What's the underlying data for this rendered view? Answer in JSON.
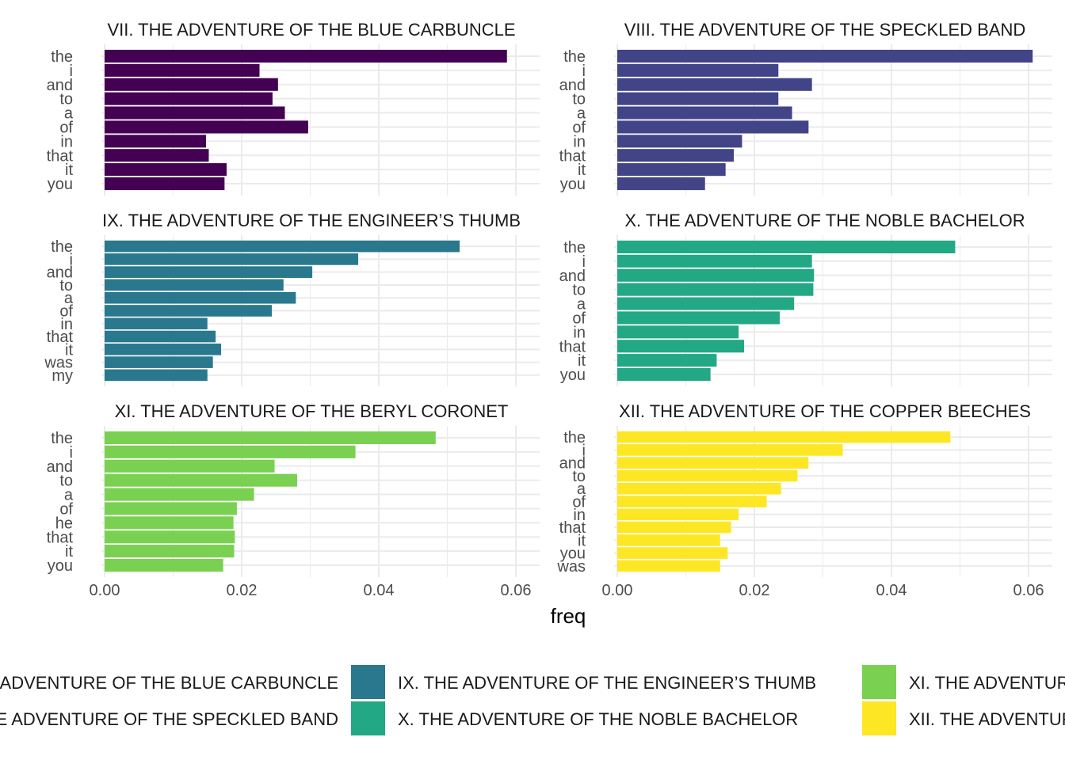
{
  "chart_data": {
    "type": "bar",
    "orientation": "horizontal",
    "xlabel": "freq",
    "xlim": [
      0,
      0.06
    ],
    "x_ticks": [
      "0.00",
      "0.02",
      "0.04",
      "0.06"
    ],
    "grid": true,
    "legend_position": "bottom",
    "panels": [
      {
        "title": "VII. THE ADVENTURE OF THE BLUE CARBUNCLE",
        "color": "#440154",
        "categories": [
          "the",
          "i",
          "and",
          "to",
          "a",
          "of",
          "in",
          "that",
          "it",
          "you"
        ],
        "values": [
          0.0587,
          0.0226,
          0.0253,
          0.0245,
          0.0263,
          0.0297,
          0.0148,
          0.0152,
          0.0178,
          0.0175
        ]
      },
      {
        "title": "VIII. THE ADVENTURE OF THE SPECKLED BAND",
        "color": "#414487",
        "categories": [
          "the",
          "i",
          "and",
          "to",
          "a",
          "of",
          "in",
          "that",
          "it",
          "you"
        ],
        "values": [
          0.0606,
          0.0235,
          0.0284,
          0.0235,
          0.0255,
          0.0279,
          0.0182,
          0.017,
          0.0158,
          0.0128
        ]
      },
      {
        "title": "IX. THE ADVENTURE OF THE ENGINEER’S THUMB",
        "color": "#2A788E",
        "categories": [
          "the",
          "i",
          "and",
          "to",
          "a",
          "of",
          "in",
          "that",
          "it",
          "was",
          "my"
        ],
        "values": [
          0.0518,
          0.037,
          0.0303,
          0.0261,
          0.0279,
          0.0244,
          0.015,
          0.0162,
          0.017,
          0.0158,
          0.015
        ]
      },
      {
        "title": "X. THE ADVENTURE OF THE NOBLE BACHELOR",
        "color": "#22A884",
        "categories": [
          "the",
          "i",
          "and",
          "to",
          "a",
          "of",
          "in",
          "that",
          "it",
          "you"
        ],
        "values": [
          0.0493,
          0.0284,
          0.0287,
          0.0286,
          0.0258,
          0.0237,
          0.0177,
          0.0185,
          0.0145,
          0.0136
        ]
      },
      {
        "title": "XI. THE ADVENTURE OF THE BERYL CORONET",
        "color": "#7AD151",
        "categories": [
          "the",
          "i",
          "and",
          "to",
          "a",
          "of",
          "he",
          "that",
          "it",
          "you"
        ],
        "values": [
          0.0483,
          0.0366,
          0.0248,
          0.0281,
          0.0218,
          0.0193,
          0.0188,
          0.019,
          0.0189,
          0.0173
        ]
      },
      {
        "title": "XII. THE ADVENTURE OF THE COPPER BEECHES",
        "color": "#FDE725",
        "categories": [
          "the",
          "i",
          "and",
          "to",
          "a",
          "of",
          "in",
          "that",
          "it",
          "you",
          "was"
        ],
        "values": [
          0.0486,
          0.0329,
          0.0279,
          0.0263,
          0.0239,
          0.0218,
          0.0177,
          0.0166,
          0.015,
          0.0161,
          0.015
        ]
      }
    ],
    "legend": [
      {
        "label": "VII. THE ADVENTURE OF THE BLUE CARBUNCLE",
        "color": "#440154"
      },
      {
        "label": "VIII. THE ADVENTURE OF THE SPECKLED BAND",
        "color": "#414487"
      },
      {
        "label": "IX. THE ADVENTURE OF THE ENGINEER’S THUMB",
        "color": "#2A788E"
      },
      {
        "label": "X. THE ADVENTURE OF THE NOBLE BACHELOR",
        "color": "#22A884"
      },
      {
        "label": "XI. THE ADVENTURE OF THE BERYL CORONET",
        "color": "#7AD151"
      },
      {
        "label": "XII. THE ADVENTURE OF THE COPPER BEECHES",
        "color": "#FDE725"
      }
    ]
  }
}
